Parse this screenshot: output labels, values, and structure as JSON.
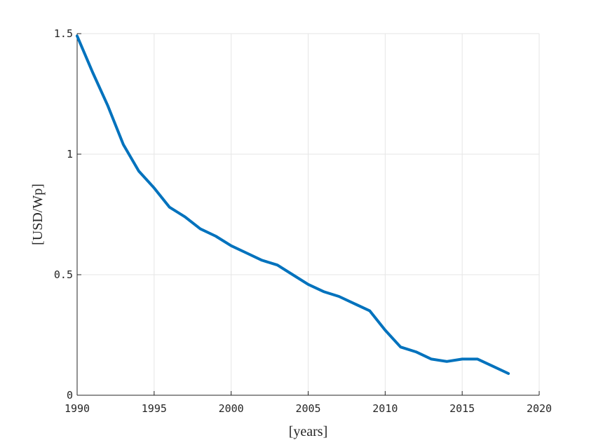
{
  "chart_data": {
    "type": "line",
    "title": "",
    "xlabel": "[years]",
    "ylabel": "[USD/Wp]",
    "xlim": [
      1990,
      2020
    ],
    "ylim": [
      0,
      1.5
    ],
    "xticks": [
      1990,
      1995,
      2000,
      2005,
      2010,
      2015,
      2020
    ],
    "xtick_labels": [
      "1990",
      "1995",
      "2000",
      "2005",
      "2010",
      "2015",
      "2020"
    ],
    "yticks": [
      0,
      0.5,
      1,
      1.5
    ],
    "ytick_labels": [
      "0",
      "0.5",
      "1",
      "1.5"
    ],
    "grid": true,
    "series": [
      {
        "color": "#0072bd",
        "x": [
          1990,
          1991,
          1992,
          1993,
          1994,
          1995,
          1996,
          1997,
          1998,
          1999,
          2000,
          2001,
          2002,
          2003,
          2004,
          2005,
          2006,
          2007,
          2008,
          2009,
          2010,
          2011,
          2012,
          2013,
          2014,
          2015,
          2016,
          2017,
          2018
        ],
        "y": [
          1.49,
          1.34,
          1.2,
          1.04,
          0.93,
          0.86,
          0.78,
          0.74,
          0.69,
          0.66,
          0.62,
          0.59,
          0.56,
          0.54,
          0.5,
          0.46,
          0.43,
          0.41,
          0.38,
          0.35,
          0.27,
          0.2,
          0.18,
          0.15,
          0.14,
          0.15,
          0.15,
          0.12,
          0.09
        ]
      }
    ]
  }
}
